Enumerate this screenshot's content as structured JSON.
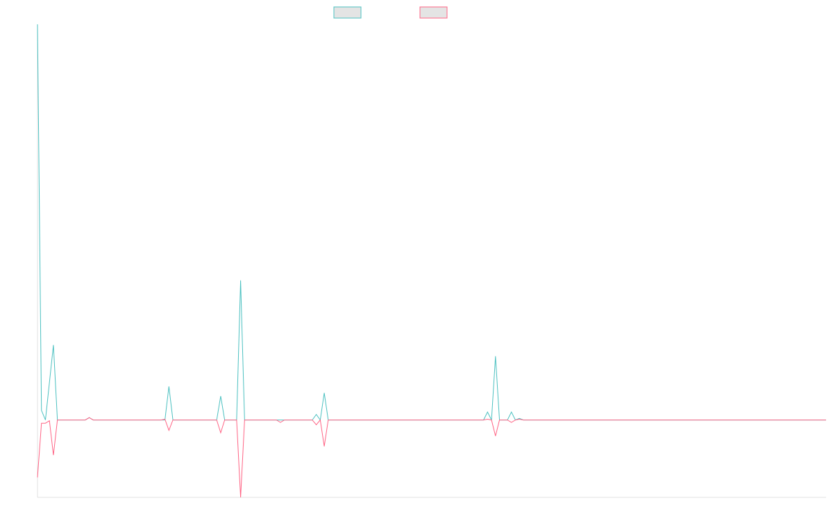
{
  "chart_data": {
    "type": "line",
    "title": "",
    "xlabel": "",
    "ylabel": "",
    "grid": false,
    "legend": {
      "placement": "top-center",
      "entries": [
        {
          "color": "#4bc0c0",
          "fill": "#e4e4e4"
        },
        {
          "color": "#ff6384",
          "fill": "#e4e4e4"
        }
      ]
    },
    "x_count": 199,
    "ylim": [
      -97,
      496
    ],
    "series": [
      {
        "color": "#4bc0c0",
        "points": [
          [
            0,
            496
          ],
          [
            1,
            12
          ],
          [
            2,
            0
          ],
          [
            4,
            94
          ],
          [
            5,
            0
          ],
          [
            12,
            0
          ],
          [
            13,
            3
          ],
          [
            14,
            0
          ],
          [
            32,
            0
          ],
          [
            33,
            42
          ],
          [
            34,
            0
          ],
          [
            45,
            0
          ],
          [
            46,
            30
          ],
          [
            47,
            0
          ],
          [
            50,
            0
          ],
          [
            51,
            175
          ],
          [
            52,
            0
          ],
          [
            69,
            0
          ],
          [
            70,
            7
          ],
          [
            71,
            0
          ],
          [
            72,
            34
          ],
          [
            73,
            0
          ],
          [
            112,
            0
          ],
          [
            113,
            10
          ],
          [
            114,
            0
          ],
          [
            115,
            80
          ],
          [
            116,
            0
          ],
          [
            118,
            0
          ],
          [
            119,
            10
          ],
          [
            120,
            0
          ],
          [
            121,
            2
          ],
          [
            122,
            0
          ],
          [
            198,
            0
          ]
        ]
      },
      {
        "color": "#ff6384",
        "points": [
          [
            0,
            -72
          ],
          [
            1,
            -4
          ],
          [
            2,
            -4
          ],
          [
            3,
            -1
          ],
          [
            4,
            -44
          ],
          [
            5,
            0
          ],
          [
            12,
            0
          ],
          [
            13,
            3
          ],
          [
            14,
            0
          ],
          [
            31,
            0
          ],
          [
            32,
            1
          ],
          [
            33,
            -13
          ],
          [
            34,
            0
          ],
          [
            45,
            0
          ],
          [
            46,
            -16
          ],
          [
            47,
            0
          ],
          [
            50,
            0
          ],
          [
            51,
            -97
          ],
          [
            52,
            0
          ],
          [
            60,
            0
          ],
          [
            61,
            -3
          ],
          [
            62,
            0
          ],
          [
            69,
            0
          ],
          [
            70,
            -6
          ],
          [
            71,
            0
          ],
          [
            72,
            -33
          ],
          [
            73,
            0
          ],
          [
            112,
            0
          ],
          [
            113,
            1
          ],
          [
            114,
            0
          ],
          [
            115,
            -20
          ],
          [
            116,
            0
          ],
          [
            118,
            0
          ],
          [
            119,
            -3
          ],
          [
            120,
            0
          ],
          [
            121,
            1
          ],
          [
            122,
            0
          ],
          [
            198,
            0
          ]
        ]
      }
    ]
  }
}
